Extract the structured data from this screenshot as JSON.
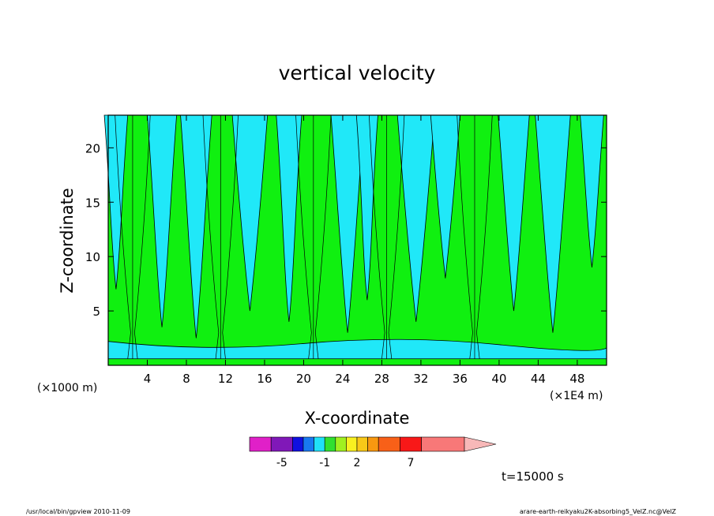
{
  "chart_data": {
    "type": "heatmap",
    "title": "vertical velocity",
    "xlabel": "X-coordinate",
    "ylabel": "Z-coordinate",
    "x_unit_left": "(×1000 m)",
    "x_unit_right": "(×1E4 m)",
    "x_ticks": [
      4,
      8,
      12,
      16,
      20,
      24,
      28,
      32,
      36,
      40,
      44,
      48
    ],
    "y_ticks": [
      5,
      10,
      15,
      20
    ],
    "xlim": [
      0,
      51
    ],
    "ylim": [
      0,
      23
    ],
    "colorbar": {
      "labels": [
        "-5",
        "-1",
        "2",
        "7"
      ],
      "label_positions": [
        -5,
        -1,
        2,
        7
      ],
      "levels": [
        -8,
        -6,
        -4,
        -3,
        -2,
        -1,
        0,
        1,
        2,
        3,
        4,
        6,
        8,
        12
      ],
      "colors": [
        "#e020c8",
        "#8018b8",
        "#1010e0",
        "#1878f0",
        "#20e0f8",
        "#30e030",
        "#a0f020",
        "#f8f020",
        "#f8c818",
        "#f89810",
        "#f86018",
        "#f81818",
        "#f87878",
        "#f8b8b8"
      ]
    },
    "colors": {
      "negative": "#20e8f8",
      "positive": "#10f010",
      "contour": "#000000"
    },
    "dominant_columns_x": [
      2.5,
      11.5,
      21,
      28.5,
      37.5
    ]
  },
  "time_label": "t=15000 s",
  "footer_left": "/usr/local/bin/gpview   2010-11-09",
  "footer_right": "arare-earth-reikyaku2K-absorbing5_VelZ.nc@VelZ"
}
